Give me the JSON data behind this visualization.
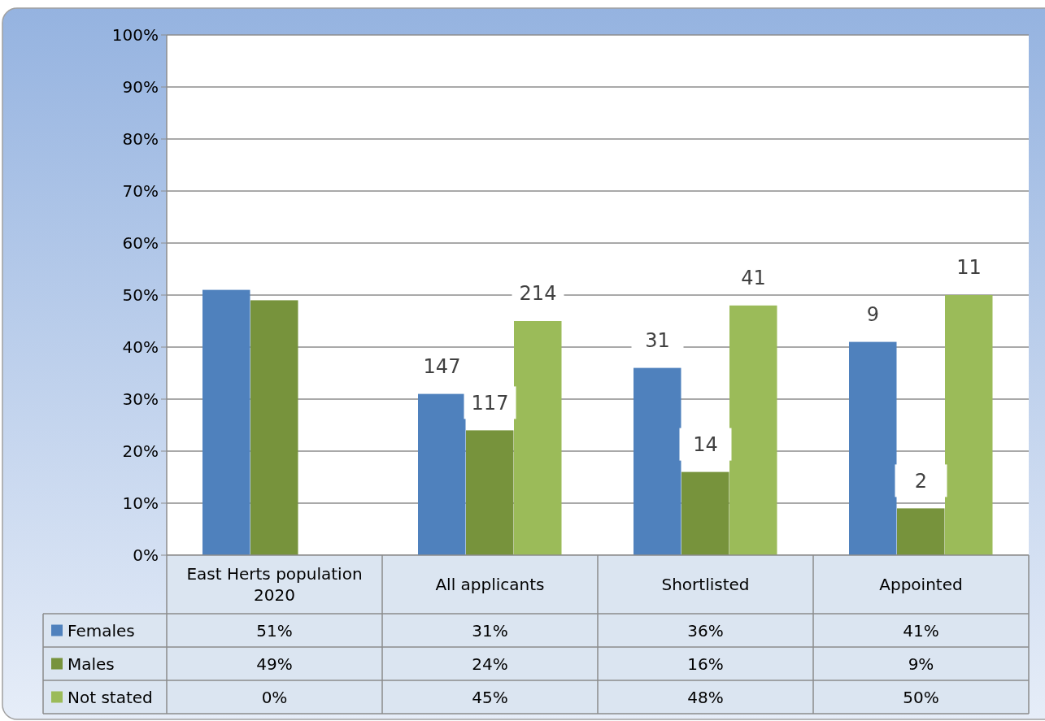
{
  "chart_data": {
    "type": "bar",
    "categories": [
      "East Herts population 2020",
      "All applicants",
      "Shortlisted",
      "Appointed"
    ],
    "series": [
      {
        "name": "Females",
        "color": "#4f81bd",
        "values": [
          51,
          31,
          36,
          41
        ],
        "value_labels": [
          "51%",
          "31%",
          "36%",
          "41%"
        ]
      },
      {
        "name": "Males",
        "color": "#77933c",
        "values": [
          49,
          24,
          16,
          9
        ],
        "value_labels": [
          "49%",
          "24%",
          "16%",
          "9%"
        ]
      },
      {
        "name": "Not stated",
        "color": "#9bbb59",
        "values": [
          0,
          45,
          48,
          50
        ],
        "value_labels": [
          "0%",
          "45%",
          "48%",
          "50%"
        ]
      }
    ],
    "ylim": [
      0,
      100
    ],
    "yticks": [
      {
        "value": 0,
        "label": "0%"
      },
      {
        "value": 10,
        "label": "10%"
      },
      {
        "value": 20,
        "label": "20%"
      },
      {
        "value": 30,
        "label": "30%"
      },
      {
        "value": 40,
        "label": "40%"
      },
      {
        "value": 50,
        "label": "50%"
      },
      {
        "value": 60,
        "label": "60%"
      },
      {
        "value": 70,
        "label": "70%"
      },
      {
        "value": 80,
        "label": "80%"
      },
      {
        "value": 90,
        "label": "90%"
      },
      {
        "value": 100,
        "label": "100%"
      }
    ],
    "annotations": [
      "147",
      "117",
      "214",
      "31",
      "14",
      "41",
      "9",
      "2",
      "11"
    ],
    "grid": "y",
    "legend": "bottom"
  }
}
